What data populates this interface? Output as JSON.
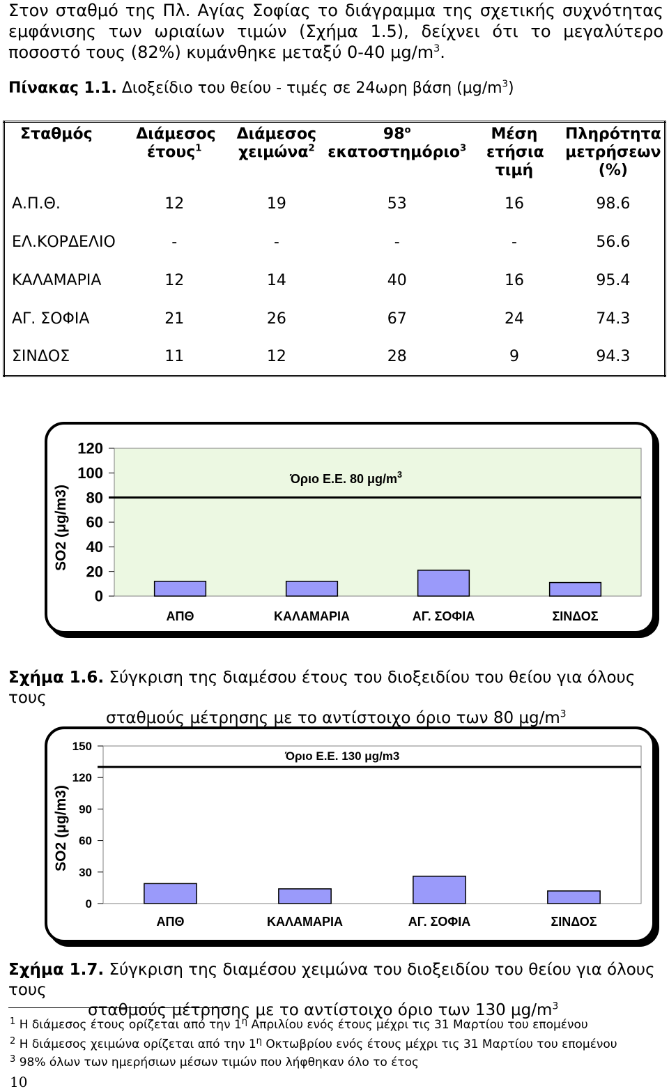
{
  "intro": {
    "line1": "Στον σταθμό της Πλ. Αγίας Σοφίας το διάγραμμα της σχετικής συχνότητας",
    "line2": "εμφάνισης των ωριαίων τιμών (Σχήμα 1.5), δείχνει ότι το μεγαλύτερο",
    "line3a": "ποσοστό τους (82%) κυμάνθηκε μεταξύ 0-40 μg/m",
    "line3sup": "3",
    "line3b": "."
  },
  "table_title": {
    "label": "Πίνακας 1.1.",
    "text_a": " Διοξείδιο του θείου - τιμές σε 24ωρη βάση (μg/m",
    "text_sup": "3",
    "text_b": ")"
  },
  "table": {
    "headers": {
      "station": "Σταθμός",
      "annual_median": "Διάμεσος έτους",
      "annual_median_note": "1",
      "winter_median": "Διάμεσος χειμώνα",
      "winter_median_note": "2",
      "percentile_98": "98",
      "percentile_98_sup": "ο",
      "percentile_98_text": "εκατοστημόριο",
      "percentile_98_note": "3",
      "annual_mean": "Μέση ετήσια τιμή",
      "completeness": "Πληρότητα μετρήσεων (%)"
    },
    "rows": [
      [
        "Α.Π.Θ.",
        "12",
        "19",
        "53",
        "16",
        "98.6"
      ],
      [
        "ΕΛ.ΚΟΡΔΕΛΙΟ",
        "-",
        "-",
        "-",
        "-",
        "56.6"
      ],
      [
        "ΚΑΛΑΜΑΡΙΑ",
        "12",
        "14",
        "40",
        "16",
        "95.4"
      ],
      [
        "ΑΓ. ΣΟΦΙΑ",
        "21",
        "26",
        "67",
        "24",
        "74.3"
      ],
      [
        "ΣΙΝΔΟΣ",
        "11",
        "12",
        "28",
        "9",
        "94.3"
      ]
    ]
  },
  "chart_data": [
    {
      "type": "bar",
      "categories": [
        "ΑΠΘ",
        "ΚΑΛΑΜΑΡΙΑ",
        "ΑΓ. ΣΟΦΙΑ",
        "ΣΙΝΔΟΣ"
      ],
      "values": [
        12,
        12,
        21,
        11
      ],
      "ylabel": "SO2 (μg/m3)",
      "ylim": [
        0,
        120
      ],
      "yticks": [
        "0",
        "20",
        "40",
        "60",
        "80",
        "100",
        "120"
      ],
      "limit_value": 80,
      "limit_label": "Όριο Ε.Ε. 80 μg/m",
      "limit_label_sup": "3",
      "plot_color": "#ecf8e2",
      "bar_color": "#9a9afa",
      "grid": false
    },
    {
      "type": "bar",
      "categories": [
        "ΑΠΘ",
        "ΚΑΛΑΜΑΡΙΑ",
        "ΑΓ. ΣΟΦΙΑ",
        "ΣΙΝΔΟΣ"
      ],
      "values": [
        19,
        14,
        26,
        12
      ],
      "ylabel": "SO2 (μg/m3)",
      "ylim": [
        0,
        150
      ],
      "yticks": [
        "0",
        "30",
        "60",
        "90",
        "120",
        "150"
      ],
      "limit_value": 130,
      "limit_label": "Όριο Ε.Ε. 130 μg/m3",
      "plot_color": "#ffffff",
      "bar_color": "#9a9afa",
      "grid": false
    }
  ],
  "captions": {
    "fig6_label": "Σχήμα 1.6.",
    "fig6_line1": " Σύγκριση της διαμέσου έτους του διοξειδίου του θείου για όλους τους",
    "fig6_line2a": "σταθμούς μέτρησης με το αντίστοιχο όριο των 80 μg/m",
    "fig6_line2sup": "3",
    "fig7_label": "Σχήμα 1.7.",
    "fig7_line1": " Σύγκριση της διαμέσου χειμώνα του διοξειδίου του θείου για όλους τους",
    "fig7_line2a": "σταθμούς μέτρησης με το αντίστοιχο όριο των 130 μg/m",
    "fig7_line2sup": "3"
  },
  "footnotes": [
    {
      "num": "1",
      "text_a": "Η διάμεσος έτους ορίζεται από την 1",
      "sup": "η",
      "text_b": " Απριλίου ενός έτους μέχρι τις 31 Μαρτίου του επομένου"
    },
    {
      "num": "2",
      "text_a": "Η διάμεσος χειμώνα ορίζεται από την 1",
      "sup": "η",
      "text_b": " Οκτωβρίου ενός έτους μέχρι τις 31 Μαρτίου του επομένου"
    },
    {
      "num": "3",
      "text_a": "98% όλων των ημερήσιων  μέσων τιμών που λήφθηκαν όλο το έτος",
      "sup": "",
      "text_b": ""
    }
  ],
  "page_number": "10"
}
